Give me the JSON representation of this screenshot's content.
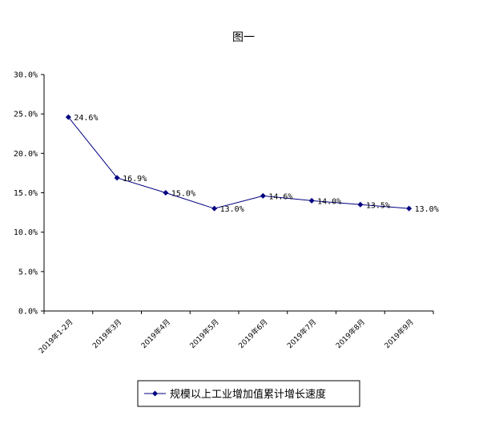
{
  "chart_data": {
    "type": "line",
    "title": "图一",
    "categories": [
      "2019年1-2月",
      "2019年3月",
      "2019年4月",
      "2019年5月",
      "2019年6月",
      "2019年7月",
      "2019年8月",
      "2019年9月"
    ],
    "series": [
      {
        "name": "规模以上工业增加值累计增长速度",
        "values": [
          24.6,
          16.9,
          15.0,
          13.0,
          14.6,
          14.0,
          13.5,
          13.0
        ],
        "labels": [
          "24.6%",
          "16.9%",
          "15.0%",
          "13.0%",
          "14.6%",
          "14.0%",
          "13.5%",
          "13.0%"
        ],
        "color": "#000080"
      }
    ],
    "yticks": [
      "0.0%",
      "5.0%",
      "10.0%",
      "15.0%",
      "20.0%",
      "25.0%",
      "30.0%"
    ],
    "ylim": [
      0,
      30
    ],
    "ystep": 5,
    "grid": false,
    "legend": "bottom-center"
  }
}
